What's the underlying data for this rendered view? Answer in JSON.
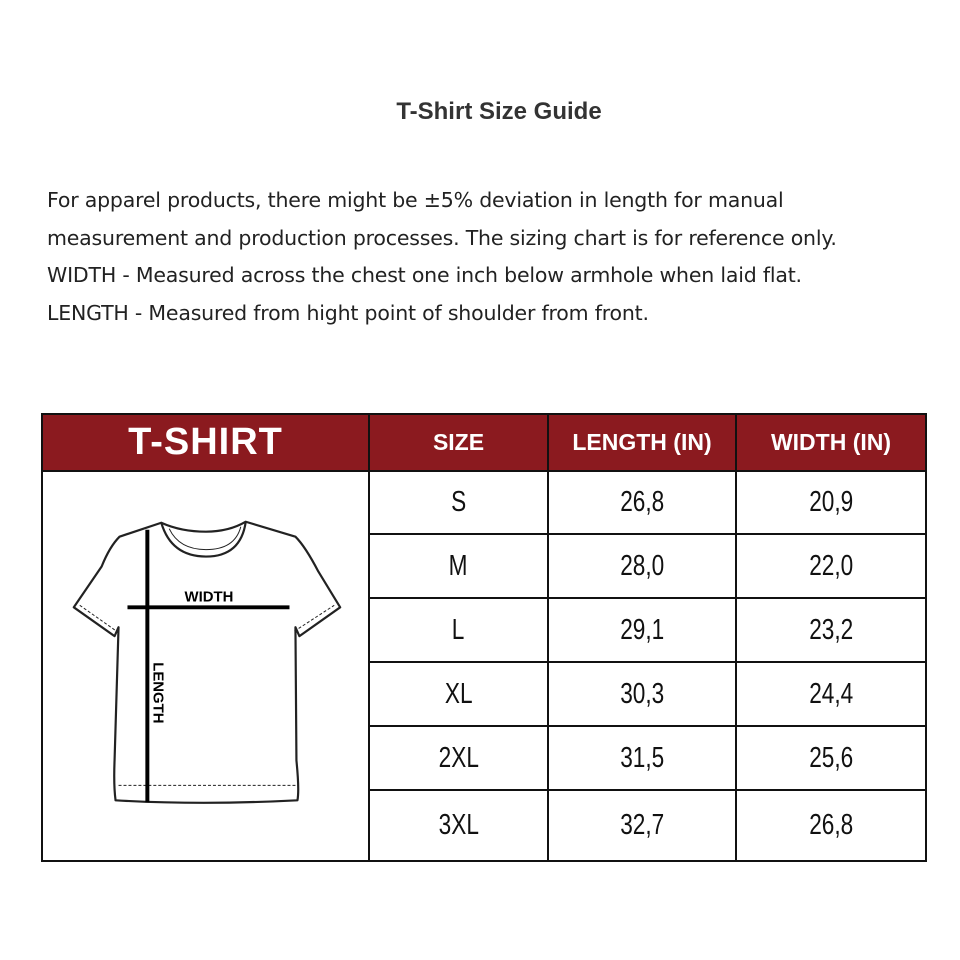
{
  "title": "T-Shirt Size Guide",
  "intro": [
    "For apparel products, there might be ±5% deviation in length for manual measurement and production processes. The sizing chart is for reference only.",
    "WIDTH - Measured across the chest one inch below armhole when laid flat.",
    "LENGTH - Measured from hight point of shoulder from front."
  ],
  "header_color": "#8b1a1f",
  "table": {
    "headers": [
      "T-SHIRT",
      "SIZE",
      "LENGTH (IN)",
      "WIDTH (IN)"
    ],
    "diagram": {
      "width_label": "WIDTH",
      "length_label": "LENGTH"
    },
    "rows": [
      {
        "size": "S",
        "length": "26,8",
        "width": "20,9"
      },
      {
        "size": "M",
        "length": "28,0",
        "width": "22,0"
      },
      {
        "size": "L",
        "length": "29,1",
        "width": "23,2"
      },
      {
        "size": "XL",
        "length": "30,3",
        "width": "24,4"
      },
      {
        "size": "2XL",
        "length": "31,5",
        "width": "25,6"
      },
      {
        "size": "3XL",
        "length": "32,7",
        "width": "26,8"
      }
    ]
  }
}
